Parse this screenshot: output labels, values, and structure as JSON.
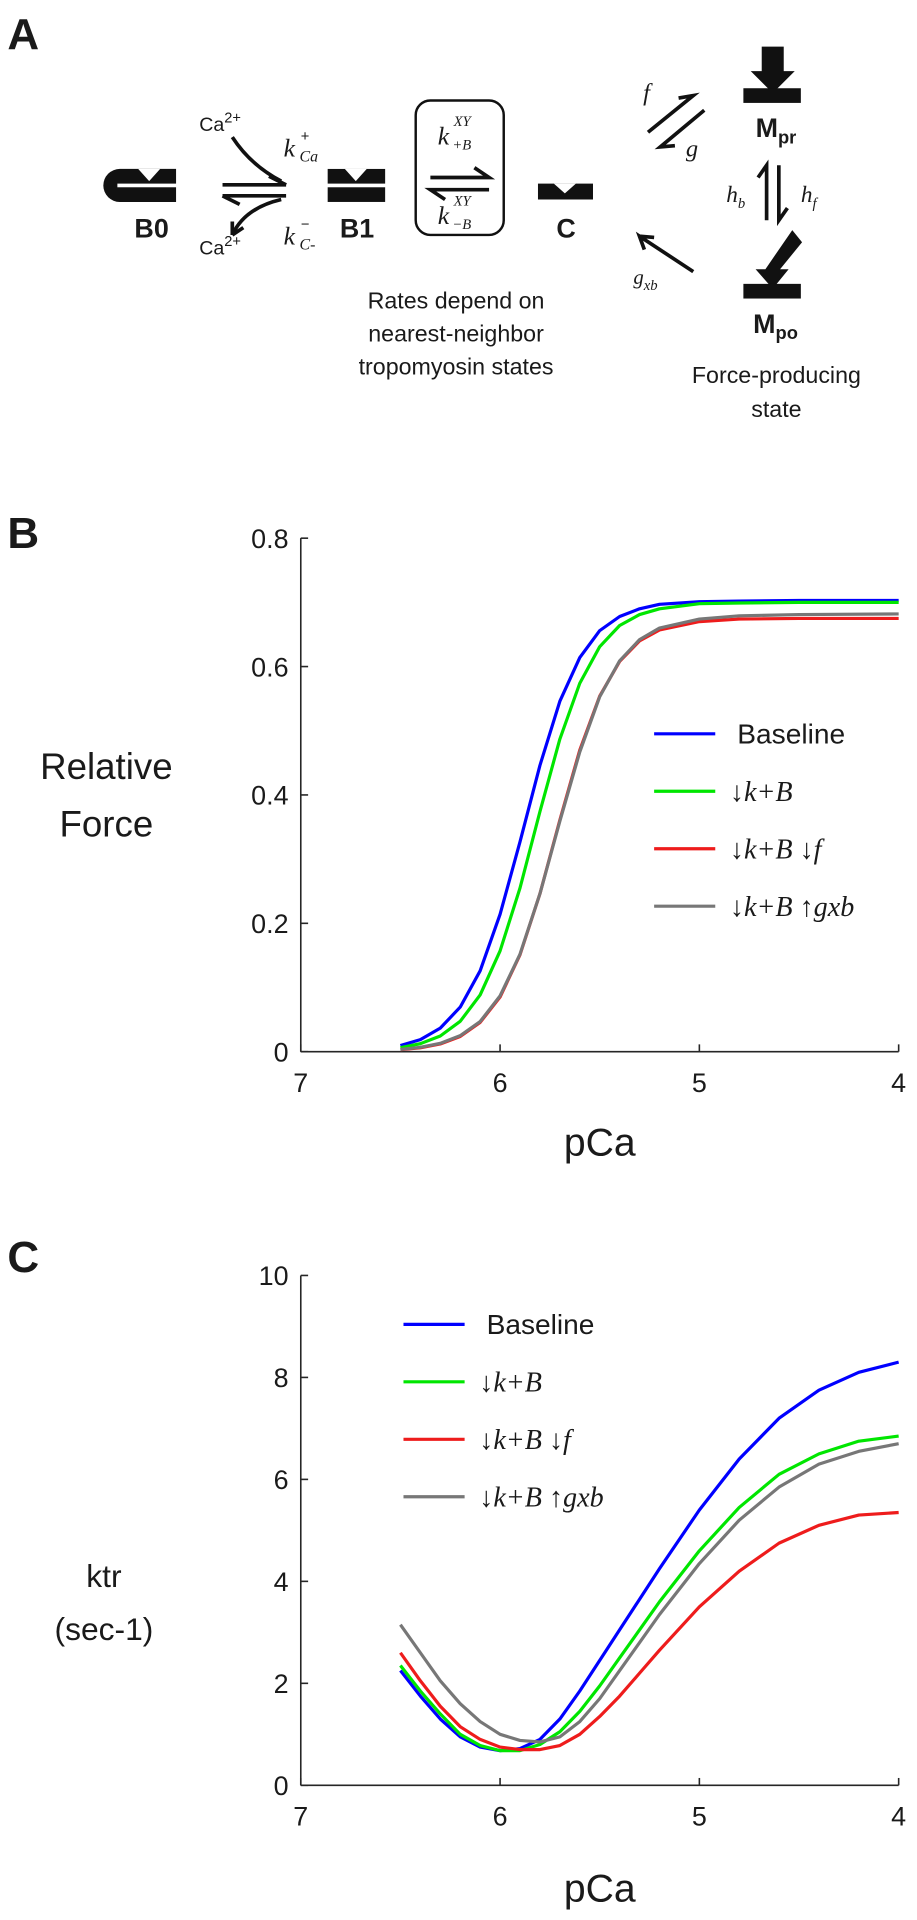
{
  "diagram": {
    "panel": "A",
    "states": {
      "b0": "B0",
      "b1": "B1",
      "c": "C",
      "m_pr": {
        "base": "M",
        "sub": "pr"
      },
      "m_po": {
        "base": "M",
        "sub": "po"
      }
    },
    "calcium_on": {
      "base": "Ca",
      "sup": "2+"
    },
    "calcium_off": {
      "base": "Ca",
      "sup": "2+"
    },
    "k_ca_plus": {
      "base": "k",
      "sup": "+",
      "sub": "Ca"
    },
    "k_ca_minus": {
      "base": "k",
      "sup": "−",
      "sub": "C-"
    },
    "k_b_plus": {
      "base": "k",
      "sup": "XY",
      "sub": "+B"
    },
    "k_b_minus": {
      "base": "k",
      "sup": "XY",
      "sub": "−B"
    },
    "rates_note": [
      "Rates depend on",
      "nearest-neighbor",
      "tropomyosin states"
    ],
    "f": "f",
    "g": "g",
    "h_b": {
      "base": "h",
      "sub": "b"
    },
    "h_f": {
      "base": "h",
      "sub": "f"
    },
    "g_xb": {
      "base": "g",
      "sub": "xb"
    },
    "force_note": [
      "Force-producing",
      "state"
    ]
  },
  "chart_data": [
    {
      "type": "line",
      "panel": "B",
      "xlabel": "pCa",
      "ylabel": [
        "Relative",
        "Force"
      ],
      "x": [
        6.5,
        6.4,
        6.3,
        6.2,
        6.1,
        6.0,
        5.9,
        5.8,
        5.7,
        5.6,
        5.5,
        5.4,
        5.3,
        5.2,
        5.0,
        4.8,
        4.5,
        4.0
      ],
      "series": [
        {
          "name": "Baseline",
          "color": "#0000ff",
          "values": [
            0.0096,
            0.0188,
            0.0367,
            0.0695,
            0.126,
            0.214,
            0.327,
            0.446,
            0.546,
            0.614,
            0.656,
            0.678,
            0.69,
            0.697,
            0.701,
            0.702,
            0.703,
            0.703
          ]
        },
        {
          "name": "↓k+B",
          "color": "#00e600",
          "values": [
            0.0063,
            0.0125,
            0.0245,
            0.0473,
            0.0884,
            0.157,
            0.255,
            0.374,
            0.487,
            0.574,
            0.631,
            0.664,
            0.681,
            0.69,
            0.698,
            0.699,
            0.7,
            0.7
          ]
        },
        {
          "name": "↓k+B ↓f",
          "color": "#ee1c1c",
          "values": [
            0.0031,
            0.0061,
            0.012,
            0.0237,
            0.0456,
            0.0852,
            0.151,
            0.246,
            0.361,
            0.47,
            0.554,
            0.608,
            0.64,
            0.657,
            0.67,
            0.674,
            0.675,
            0.675
          ]
        },
        {
          "name": "↓k+B ↑gxb",
          "color": "#777777",
          "values": [
            0.0035,
            0.0068,
            0.013,
            0.025,
            0.047,
            0.087,
            0.152,
            0.246,
            0.359,
            0.467,
            0.553,
            0.609,
            0.642,
            0.66,
            0.674,
            0.679,
            0.681,
            0.682
          ]
        }
      ],
      "xlim": [
        7,
        4
      ],
      "xticks": [
        7,
        6,
        5,
        4
      ],
      "ylim": [
        0,
        0.8
      ],
      "yticks": [
        0,
        0.2,
        0.4,
        0.6,
        0.8
      ],
      "grid": false,
      "legend": "center right"
    },
    {
      "type": "line",
      "panel": "C",
      "xlabel": "pCa",
      "ylabel": [
        "ktr",
        "(sec-1)"
      ],
      "x": [
        6.5,
        6.4,
        6.3,
        6.2,
        6.1,
        6.0,
        5.9,
        5.8,
        5.7,
        5.6,
        5.5,
        5.4,
        5.3,
        5.2,
        5.0,
        4.8,
        4.6,
        4.4,
        4.2,
        4.0
      ],
      "series": [
        {
          "name": "Baseline",
          "color": "#0000ff",
          "values": [
            2.25,
            1.75,
            1.3,
            0.95,
            0.75,
            0.68,
            0.72,
            0.9,
            1.3,
            1.85,
            2.45,
            3.05,
            3.65,
            4.25,
            5.4,
            6.4,
            7.2,
            7.75,
            8.1,
            8.3
          ]
        },
        {
          "name": "↓k+B",
          "color": "#00e600",
          "values": [
            2.35,
            1.85,
            1.4,
            1.0,
            0.78,
            0.68,
            0.68,
            0.8,
            1.05,
            1.45,
            1.95,
            2.5,
            3.05,
            3.6,
            4.6,
            5.45,
            6.1,
            6.5,
            6.75,
            6.85
          ]
        },
        {
          "name": "↓k+B ↓f",
          "color": "#ee1c1c",
          "values": [
            2.6,
            2.05,
            1.55,
            1.15,
            0.9,
            0.75,
            0.7,
            0.7,
            0.78,
            1.0,
            1.35,
            1.75,
            2.2,
            2.65,
            3.5,
            4.2,
            4.75,
            5.1,
            5.3,
            5.35
          ]
        },
        {
          "name": "↓k+B ↑gxb",
          "color": "#777777",
          "values": [
            3.15,
            2.6,
            2.05,
            1.6,
            1.25,
            1.0,
            0.88,
            0.85,
            0.95,
            1.25,
            1.7,
            2.25,
            2.8,
            3.35,
            4.35,
            5.2,
            5.85,
            6.3,
            6.55,
            6.7
          ]
        }
      ],
      "xlim": [
        7,
        4
      ],
      "xticks": [
        7,
        6,
        5,
        4
      ],
      "ylim": [
        0,
        10
      ],
      "yticks": [
        0,
        2,
        4,
        6,
        8,
        10
      ],
      "grid": false,
      "legend": "upper left"
    }
  ]
}
